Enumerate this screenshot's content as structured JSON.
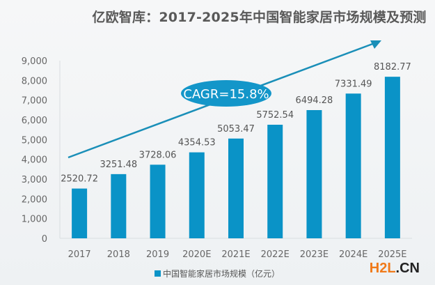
{
  "chart_data": {
    "type": "bar",
    "title": "亿欧智库：2017-2025年中国智能家居市场规模及预测",
    "categories": [
      "2017",
      "2018",
      "2019",
      "2020E",
      "2021E",
      "2022E",
      "2023E",
      "2024E",
      "2025E"
    ],
    "values": [
      2520.72,
      3251.48,
      3728.06,
      4354.53,
      5053.47,
      5752.54,
      6494.28,
      7331.49,
      8182.77
    ],
    "data_labels": [
      "2520.72",
      "3251.48",
      "3728.06",
      "4354.53",
      "5053.47",
      "5752.54",
      "6494.28",
      "7331.49",
      "8182.77"
    ],
    "series": [
      {
        "name": "中国智能家居市场规模（亿元）",
        "color": "#0a93c7"
      }
    ],
    "yticks": [
      0,
      1000,
      2000,
      3000,
      4000,
      5000,
      6000,
      7000,
      8000,
      9000
    ],
    "ytick_labels": [
      "0",
      "1,000",
      "2,000",
      "3,000",
      "4,000",
      "5,000",
      "6,000",
      "7,000",
      "8,000",
      "9,000"
    ],
    "ylim": [
      0,
      9000
    ],
    "xlabel": "",
    "ylabel": "",
    "grid": false,
    "legend_position": "bottom",
    "annotation": {
      "text": "CAGR=15.8%",
      "type": "trend-arrow"
    }
  },
  "watermark": {
    "part1": "H2L",
    "part2": ".CN"
  },
  "colors": {
    "bar": "#0a93c7",
    "arrow": "#1a8fb8",
    "ellipse": "#1396c9",
    "text": "#595959"
  }
}
